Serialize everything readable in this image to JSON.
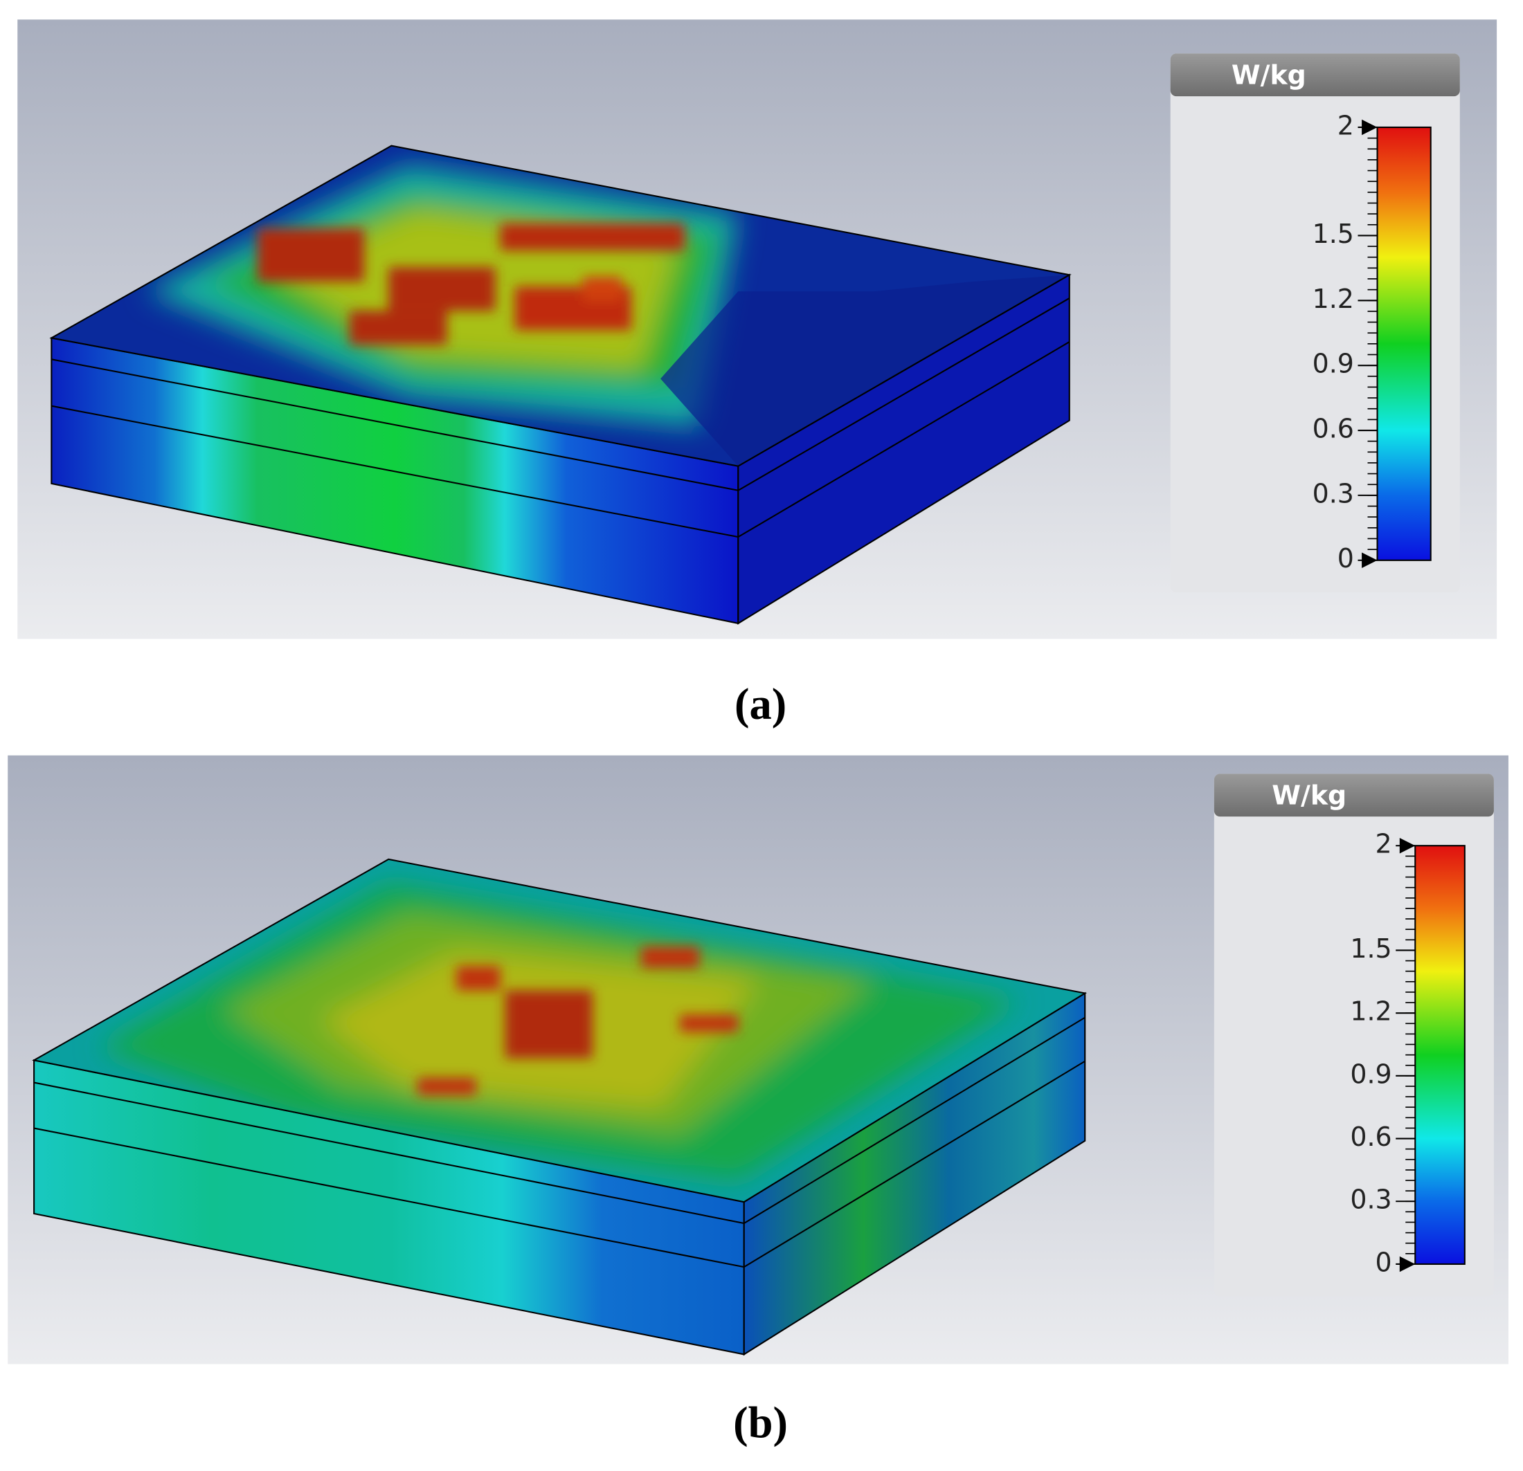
{
  "panels": [
    {
      "label": "(a)",
      "colorbar": {
        "unit": "W/kg",
        "range": [
          0,
          2
        ],
        "ticks": [
          0,
          0.3,
          0.6,
          0.9,
          1.2,
          1.5,
          2
        ]
      }
    },
    {
      "label": "(b)",
      "colorbar": {
        "unit": "W/kg",
        "range": [
          0,
          2
        ],
        "ticks": [
          0,
          0.3,
          0.6,
          0.9,
          1.2,
          1.5,
          2
        ]
      }
    }
  ]
}
